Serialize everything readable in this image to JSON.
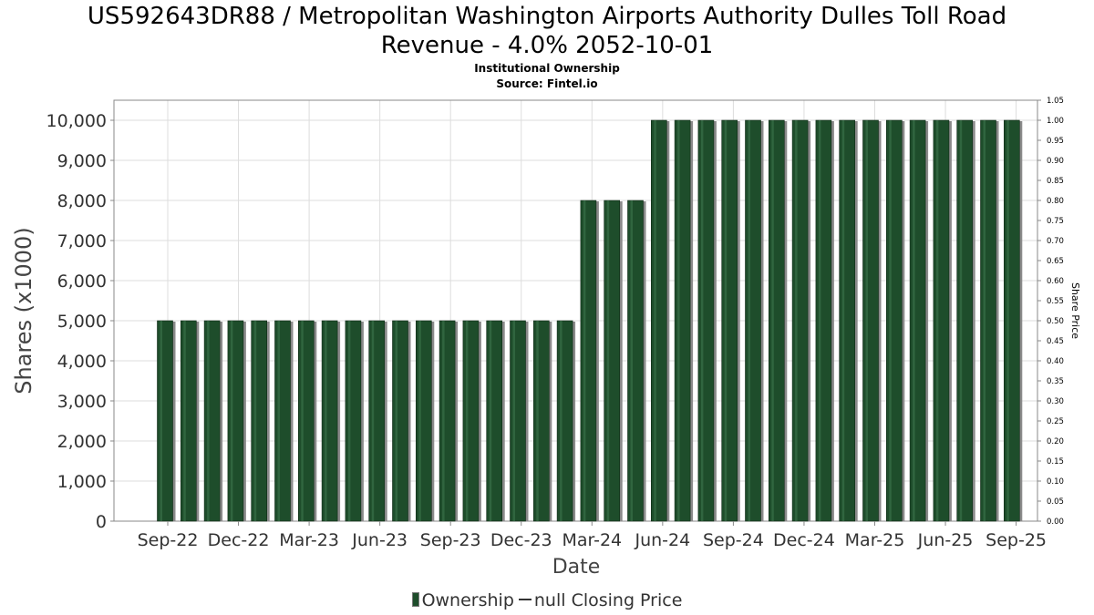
{
  "header": {
    "title_line1": "US592643DR88 / Metropolitan Washington Airports Authority Dulles Toll Road",
    "title_line2": "Revenue - 4.0% 2052-10-01",
    "subtitle_line1": "Institutional Ownership",
    "subtitle_line2": "Source: Fintel.io"
  },
  "legend": {
    "ownership_label": "Ownership",
    "price_label": "null Closing Price"
  },
  "chart_data": {
    "type": "bar",
    "xlabel": "Date",
    "ylabel": "Shares (x1000)",
    "y2label": "Share Price",
    "ylim": [
      0,
      10500
    ],
    "y2lim": [
      0,
      1.05
    ],
    "grid": true,
    "legend_position": "bottom",
    "yticks": [
      "0",
      "1,000",
      "2,000",
      "3,000",
      "4,000",
      "5,000",
      "6,000",
      "7,000",
      "8,000",
      "9,000",
      "10,000"
    ],
    "y2ticks": [
      "0.00",
      "0.05",
      "0.10",
      "0.15",
      "0.20",
      "0.25",
      "0.30",
      "0.35",
      "0.40",
      "0.45",
      "0.50",
      "0.55",
      "0.60",
      "0.65",
      "0.70",
      "0.75",
      "0.80",
      "0.85",
      "0.90",
      "0.95",
      "1.00",
      "1.05"
    ],
    "xticks": [
      "Sep-22",
      "Dec-22",
      "Mar-23",
      "Jun-23",
      "Sep-23",
      "Dec-23",
      "Mar-24",
      "Jun-24",
      "Sep-24",
      "Dec-24",
      "Mar-25",
      "Jun-25",
      "Sep-25"
    ],
    "series": [
      {
        "name": "Ownership",
        "color": "#1e4d2b",
        "values": [
          5000,
          5000,
          5000,
          5000,
          5000,
          5000,
          5000,
          5000,
          5000,
          5000,
          5000,
          5000,
          5000,
          5000,
          5000,
          5000,
          5000,
          5000,
          8000,
          8000,
          8000,
          10000,
          10000,
          10000,
          10000,
          10000,
          10000,
          10000,
          10000,
          10000,
          10000,
          10000,
          10000,
          10000,
          10000,
          10000,
          10000
        ]
      }
    ]
  }
}
